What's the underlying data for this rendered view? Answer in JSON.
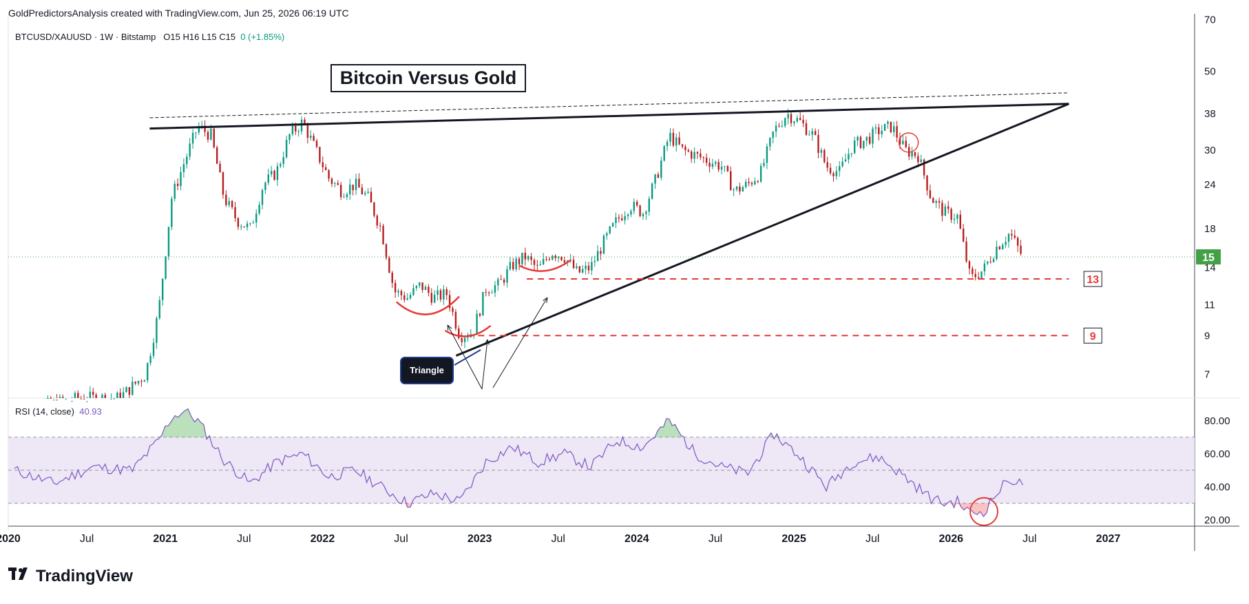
{
  "header": {
    "attribution": "GoldPredictorsAnalysis created with TradingView.com, Jun 25, 2026 06:19 UTC"
  },
  "legend": {
    "symbol": "BTCUSD/XAUUSD · 1W · Bitstamp",
    "ohlc": "O15  H16  L15  C15",
    "change": "0 (+1.85%)"
  },
  "rsi_legend": {
    "label": "RSI (14, close)",
    "value": "40.93"
  },
  "annotations": {
    "title_box": "Bitcoin Versus Gold",
    "triangle_label": "Triangle",
    "level_13": "13",
    "level_9": "9"
  },
  "brand": {
    "name": "TradingView",
    "logo_icon": "tv-logo-icon"
  },
  "colors": {
    "up": "#089981",
    "down": "#b71c1c",
    "rsi": "#7e57c2",
    "rsi_band": "#ede7f6",
    "level": "#e53935",
    "price_tag": "#43a047"
  },
  "chart_data": [
    {
      "type": "candlestick",
      "scale": "log",
      "y_ticks": [
        70,
        50,
        38,
        30,
        24,
        18,
        14,
        11,
        9,
        7
      ],
      "ylim": [
        6,
        72
      ],
      "x_ticks": [
        "2020",
        "Jul",
        "2021",
        "Jul",
        "2022",
        "Jul",
        "2023",
        "Jul",
        "2024",
        "Jul",
        "2025",
        "Jul",
        "2026",
        "Jul",
        "2027"
      ],
      "x_tick_dates": [
        "2020-01",
        "2020-07",
        "2021-01",
        "2021-07",
        "2022-01",
        "2022-07",
        "2023-01",
        "2023-07",
        "2024-01",
        "2024-07",
        "2025-01",
        "2025-07",
        "2026-01",
        "2026-07",
        "2027-01"
      ],
      "last_price": 15,
      "series": [
        {
          "price_path": [
            [
              "2020-01",
              5.5
            ],
            [
              "2020-06",
              6.0
            ],
            [
              "2020-09",
              6.0
            ],
            [
              "2020-11",
              7.0
            ],
            [
              "2020-12",
              10.5
            ],
            [
              "2021-01",
              22
            ],
            [
              "2021-02",
              28
            ],
            [
              "2021-03",
              35
            ],
            [
              "2021-04",
              33
            ],
            [
              "2021-05",
              22
            ],
            [
              "2021-06",
              19
            ],
            [
              "2021-07",
              18
            ],
            [
              "2021-08",
              24
            ],
            [
              "2021-09",
              26
            ],
            [
              "2021-10",
              33
            ],
            [
              "2021-11",
              36
            ],
            [
              "2021-12",
              30
            ],
            [
              "2022-01",
              25
            ],
            [
              "2022-02",
              23
            ],
            [
              "2022-03",
              24
            ],
            [
              "2022-04",
              22
            ],
            [
              "2022-05",
              18
            ],
            [
              "2022-06",
              12
            ],
            [
              "2022-07",
              11.5
            ],
            [
              "2022-08",
              12.5
            ],
            [
              "2022-09",
              11.5
            ],
            [
              "2022-10",
              11.8
            ],
            [
              "2022-11",
              9.0
            ],
            [
              "2022-12",
              9.2
            ],
            [
              "2023-01",
              12.2
            ],
            [
              "2023-02",
              12.5
            ],
            [
              "2023-03",
              14.2
            ],
            [
              "2023-04",
              15.0
            ],
            [
              "2023-05",
              13.8
            ],
            [
              "2023-06",
              15.5
            ],
            [
              "2023-07",
              15.0
            ],
            [
              "2023-08",
              13.5
            ],
            [
              "2023-09",
              14.0
            ],
            [
              "2023-10",
              16.5
            ],
            [
              "2023-11",
              19.0
            ],
            [
              "2023-12",
              21.0
            ],
            [
              "2024-01",
              20.0
            ],
            [
              "2024-02",
              25.0
            ],
            [
              "2024-03",
              33.0
            ],
            [
              "2024-04",
              30.0
            ],
            [
              "2024-05",
              29.0
            ],
            [
              "2024-06",
              28.0
            ],
            [
              "2024-07",
              27.0
            ],
            [
              "2024-08",
              23.0
            ],
            [
              "2024-09",
              24.0
            ],
            [
              "2024-10",
              26.0
            ],
            [
              "2024-11",
              34.0
            ],
            [
              "2024-12",
              38.0
            ],
            [
              "2025-01",
              36.0
            ],
            [
              "2025-02",
              33.0
            ],
            [
              "2025-03",
              27.0
            ],
            [
              "2025-04",
              26.0
            ],
            [
              "2025-05",
              31.0
            ],
            [
              "2025-06",
              32.0
            ],
            [
              "2025-07",
              34.0
            ],
            [
              "2025-08",
              35.0
            ],
            [
              "2025-09",
              30.0
            ],
            [
              "2025-10",
              29.0
            ],
            [
              "2025-11",
              22.0
            ],
            [
              "2025-12",
              20.0
            ],
            [
              "2026-01",
              19.5
            ],
            [
              "2026-02",
              13.0
            ],
            [
              "2026-03",
              13.8
            ],
            [
              "2026-04",
              16.0
            ],
            [
              "2026-05",
              17.5
            ],
            [
              "2026-06",
              15.0
            ]
          ]
        }
      ],
      "levels": [
        13,
        9
      ]
    },
    {
      "type": "line",
      "series": [
        {
          "name": "RSI (14, close)",
          "values": [
            [
              "2020-01",
              50
            ],
            [
              "2020-04",
              42
            ],
            [
              "2020-07",
              52
            ],
            [
              "2020-10",
              50
            ],
            [
              "2020-12",
              68
            ],
            [
              "2021-01",
              82
            ],
            [
              "2021-02",
              86
            ],
            [
              "2021-03",
              80
            ],
            [
              "2021-05",
              56
            ],
            [
              "2021-07",
              42
            ],
            [
              "2021-09",
              55
            ],
            [
              "2021-11",
              60
            ],
            [
              "2022-01",
              46
            ],
            [
              "2022-03",
              50
            ],
            [
              "2022-05",
              40
            ],
            [
              "2022-07",
              30
            ],
            [
              "2022-09",
              36
            ],
            [
              "2022-11",
              31
            ],
            [
              "2023-01",
              55
            ],
            [
              "2023-03",
              64
            ],
            [
              "2023-05",
              55
            ],
            [
              "2023-07",
              60
            ],
            [
              "2023-09",
              52
            ],
            [
              "2023-11",
              68
            ],
            [
              "2024-01",
              64
            ],
            [
              "2024-03",
              80
            ],
            [
              "2024-05",
              60
            ],
            [
              "2024-07",
              52
            ],
            [
              "2024-09",
              48
            ],
            [
              "2024-11",
              72
            ],
            [
              "2025-01",
              58
            ],
            [
              "2025-03",
              40
            ],
            [
              "2025-05",
              55
            ],
            [
              "2025-07",
              58
            ],
            [
              "2025-09",
              46
            ],
            [
              "2025-11",
              33
            ],
            [
              "2025-12",
              30
            ],
            [
              "2026-01",
              31
            ],
            [
              "2026-02",
              24
            ],
            [
              "2026-03",
              25
            ],
            [
              "2026-04",
              36
            ],
            [
              "2026-05",
              45
            ],
            [
              "2026-06",
              41
            ]
          ]
        }
      ],
      "y_ticks": [
        80,
        60,
        40,
        20
      ],
      "ylim": [
        17,
        92
      ],
      "bands": [
        30,
        50,
        70
      ]
    }
  ]
}
